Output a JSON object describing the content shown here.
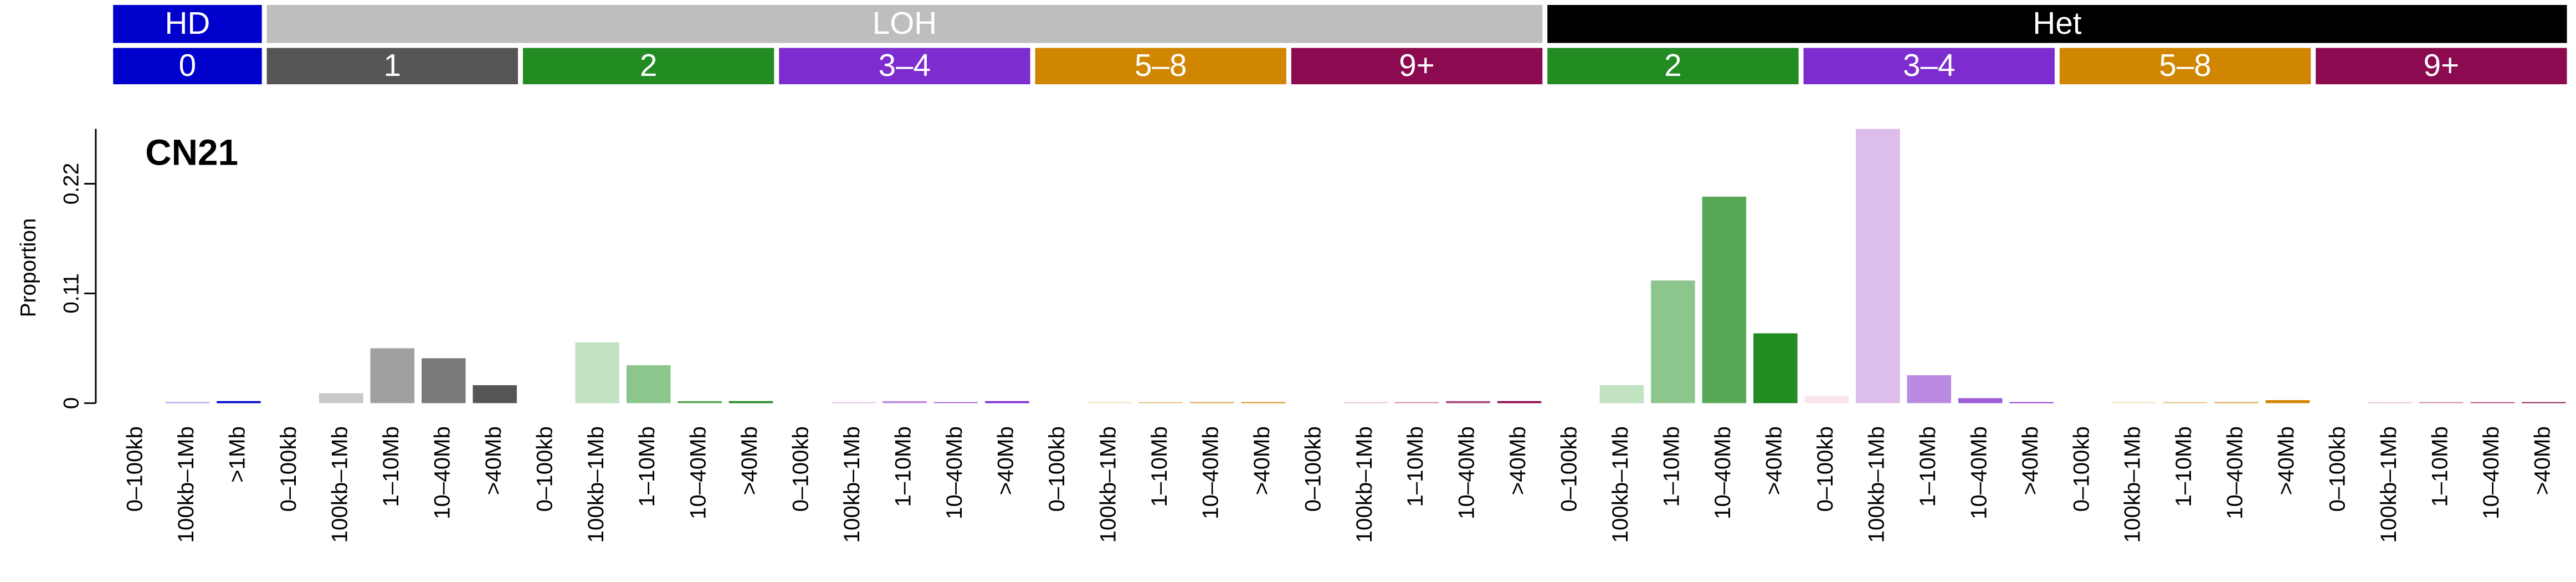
{
  "chart_data": {
    "type": "bar",
    "title": "CN21",
    "y_label": "Proportion",
    "group_labels": [
      "HD",
      "LOH",
      "Het"
    ],
    "group_colors": [
      "#0000cc",
      "#bebebe",
      "#000000"
    ],
    "copy_number_labels": [
      "0",
      "1",
      "2",
      "3–4",
      "5–8",
      "9+",
      "2",
      "3–4",
      "5–8",
      "9+"
    ],
    "copy_number_colors": [
      "#0000cc",
      "#555555",
      "#228b22",
      "#7d2ccf",
      "#d08600",
      "#8b0a50",
      "#228b22",
      "#7d2ccf",
      "#d08600",
      "#8b0a50"
    ],
    "categories": [
      "0–100kb",
      "100kb–1Mb",
      ">1Mb",
      "0–100kb",
      "100kb–1Mb",
      "1–10Mb",
      "10–40Mb",
      ">40Mb",
      "0–100kb",
      "100kb–1Mb",
      "1–10Mb",
      "10–40Mb",
      ">40Mb",
      "0–100kb",
      "100kb–1Mb",
      "1–10Mb",
      "10–40Mb",
      ">40Mb",
      "0–100kb",
      "100kb–1Mb",
      "1–10Mb",
      "10–40Mb",
      ">40Mb",
      "0–100kb",
      "100kb–1Mb",
      "1–10Mb",
      "10–40Mb",
      ">40Mb",
      "0–100kb",
      "100kb–1Mb",
      "1–10Mb",
      "10–40Mb",
      ">40Mb",
      "0–100kb",
      "100kb–1Mb",
      "1–10Mb",
      "10–40Mb",
      ">40Mb",
      "0–100kb",
      "100kb–1Mb",
      "1–10Mb",
      "10–40Mb",
      ">40Mb",
      "0–100kb",
      "100kb–1Mb",
      "1–10Mb",
      "10–40Mb",
      ">40Mb"
    ],
    "values": [
      0,
      0.001,
      0.002,
      0,
      0.01,
      0.055,
      0.045,
      0.018,
      0,
      0.061,
      0.038,
      0.002,
      0.002,
      0,
      0.001,
      0.002,
      0.001,
      0.002,
      0,
      0.001,
      0.001,
      0.001,
      0.001,
      0,
      0.001,
      0.001,
      0.002,
      0.002,
      0,
      0.018,
      0.123,
      0.207,
      0.07,
      0.007,
      0.275,
      0.028,
      0.005,
      0.001,
      0,
      0.001,
      0.001,
      0.001,
      0.003,
      0,
      0.001,
      0.001,
      0.001,
      0.001
    ],
    "colors": [
      "#ccccf5",
      "#9999ea",
      "#0000cc",
      "#e6e6e6",
      "#c8c8c8",
      "#a0a0a0",
      "#7a7a7a",
      "#555555",
      "#d6ead6",
      "#c1e3c1",
      "#8dc68d",
      "#57a857",
      "#228b22",
      "#eadaf5",
      "#dcbdec",
      "#bb8ae2",
      "#9d5bd8",
      "#7d2ccf",
      "#f5e6cc",
      "#f0dcb0",
      "#e4bd73",
      "#da9f36",
      "#d08600",
      "#f3dce6",
      "#e8c0d2",
      "#c57fa4",
      "#a8457a",
      "#8b0a50",
      "#d6ead6",
      "#c1e3c1",
      "#8dc68d",
      "#57a857",
      "#228b22",
      "#fbe3ef",
      "#dcbdec",
      "#bb8ae2",
      "#9d5bd8",
      "#7d2ccf",
      "#f5e6cc",
      "#f0dcb0",
      "#e4bd73",
      "#da9f36",
      "#d08600",
      "#f3dce6",
      "#e8c0d2",
      "#c57fa4",
      "#a8457a",
      "#8b0a50"
    ],
    "ylim": [
      0,
      0.275
    ],
    "yticks": [
      0,
      0.11,
      0.22
    ]
  }
}
